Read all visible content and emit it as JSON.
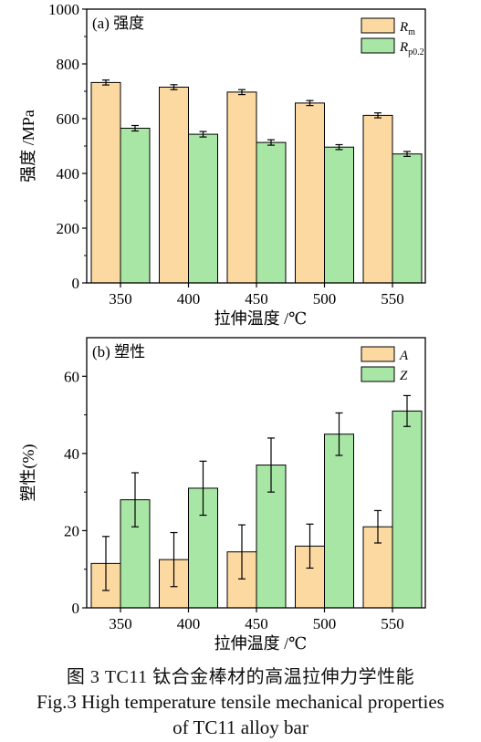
{
  "chart_data": [
    {
      "type": "bar",
      "title": "(a) 强度",
      "xlabel": "拉伸温度 /℃",
      "ylabel": "强度 /MPa",
      "categories": [
        "350",
        "400",
        "450",
        "500",
        "550"
      ],
      "ylim": [
        0,
        1000
      ],
      "yticks": [
        "0",
        "200",
        "400",
        "600",
        "800",
        "1000"
      ],
      "legend_position": "top-right",
      "series": [
        {
          "name": "R",
          "sub": "m",
          "color": "#FDD9A2",
          "values": [
            732,
            715,
            697,
            657,
            612
          ],
          "errors": [
            9,
            9,
            9,
            9,
            9
          ]
        },
        {
          "name": "R",
          "sub": "p0.2",
          "color": "#A8E6A5",
          "values": [
            565,
            543,
            513,
            496,
            471
          ],
          "errors": [
            10,
            10,
            10,
            9,
            9
          ]
        }
      ]
    },
    {
      "type": "bar",
      "title": "(b) 塑性",
      "xlabel": "拉伸温度 /℃",
      "ylabel": "塑性(%)",
      "categories": [
        "350",
        "400",
        "450",
        "500",
        "550"
      ],
      "ylim": [
        0,
        70
      ],
      "yticks": [
        "0",
        "20",
        "40",
        "60"
      ],
      "legend_position": "top-right",
      "series": [
        {
          "name": "A",
          "sub": "",
          "color": "#FDD9A2",
          "values": [
            11.5,
            12.5,
            14.5,
            16,
            21
          ],
          "errors": [
            7,
            7,
            7,
            5.7,
            4.2
          ]
        },
        {
          "name": "Z",
          "sub": "",
          "color": "#A8E6A5",
          "values": [
            28,
            31,
            37,
            45,
            51
          ],
          "errors": [
            7,
            7,
            7,
            5.5,
            4
          ]
        }
      ]
    }
  ],
  "caption": {
    "cn": "图 3  TC11 钛合金棒材的高温拉伸力学性能",
    "en_line1": "Fig.3  High temperature tensile mechanical properties",
    "en_line2": "of TC11 alloy bar"
  }
}
